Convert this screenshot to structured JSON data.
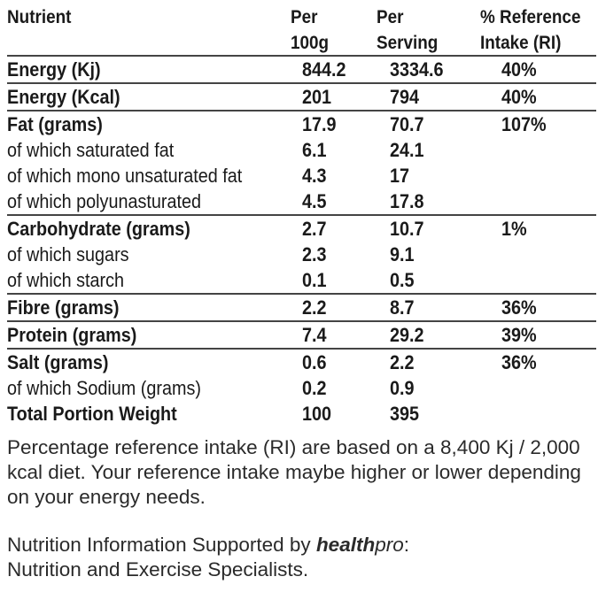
{
  "header": {
    "nutrient": "Nutrient",
    "per100_line1": "Per",
    "per100_line2": "100g",
    "serving_line1": "Per",
    "serving_line2": "Serving",
    "ri_line1": "% Reference",
    "ri_line2": "Intake (RI)"
  },
  "rows": [
    {
      "label": "Energy (Kj)",
      "per100": "844.2",
      "serving": "3334.6",
      "ri": "40%"
    },
    {
      "label": "Energy (Kcal)",
      "per100": "201",
      "serving": "794",
      "ri": "40%"
    },
    {
      "label": "Fat (grams)",
      "per100": "17.9",
      "serving": "70.7",
      "ri": "107%"
    },
    {
      "label": "of which saturated fat",
      "per100": "6.1",
      "serving": "24.1",
      "ri": ""
    },
    {
      "label": "of which mono unsaturated fat",
      "per100": "4.3",
      "serving": "17",
      "ri": ""
    },
    {
      "label": "of which polyunasturated",
      "per100": "4.5",
      "serving": "17.8",
      "ri": ""
    },
    {
      "label": "Carbohydrate (grams)",
      "per100": "2.7",
      "serving": "10.7",
      "ri": "1%"
    },
    {
      "label": "of which sugars",
      "per100": "2.3",
      "serving": "9.1",
      "ri": ""
    },
    {
      "label": "of which starch",
      "per100": "0.1",
      "serving": "0.5",
      "ri": ""
    },
    {
      "label": "Fibre (grams)",
      "per100": "2.2",
      "serving": "8.7",
      "ri": "36%"
    },
    {
      "label": "Protein (grams)",
      "per100": "7.4",
      "serving": "29.2",
      "ri": "39%"
    },
    {
      "label": "Salt (grams)",
      "per100": "0.6",
      "serving": "2.2",
      "ri": "36%"
    },
    {
      "label": "of which Sodium (grams)",
      "per100": "0.2",
      "serving": "0.9",
      "ri": ""
    },
    {
      "label": "Total Portion Weight",
      "per100": "100",
      "serving": "395",
      "ri": ""
    }
  ],
  "notes": {
    "ri_note": "Percentage reference intake (RI) are based on a 8,400 Kj / 2,000 kcal diet. Your reference intake maybe higher or lower depending on your energy needs.",
    "support_prefix": "Nutrition Information Supported by ",
    "brand_strong": "health",
    "brand_light": "pro",
    "support_suffix": ":",
    "support_line2": "Nutrition and Exercise Specialists."
  }
}
